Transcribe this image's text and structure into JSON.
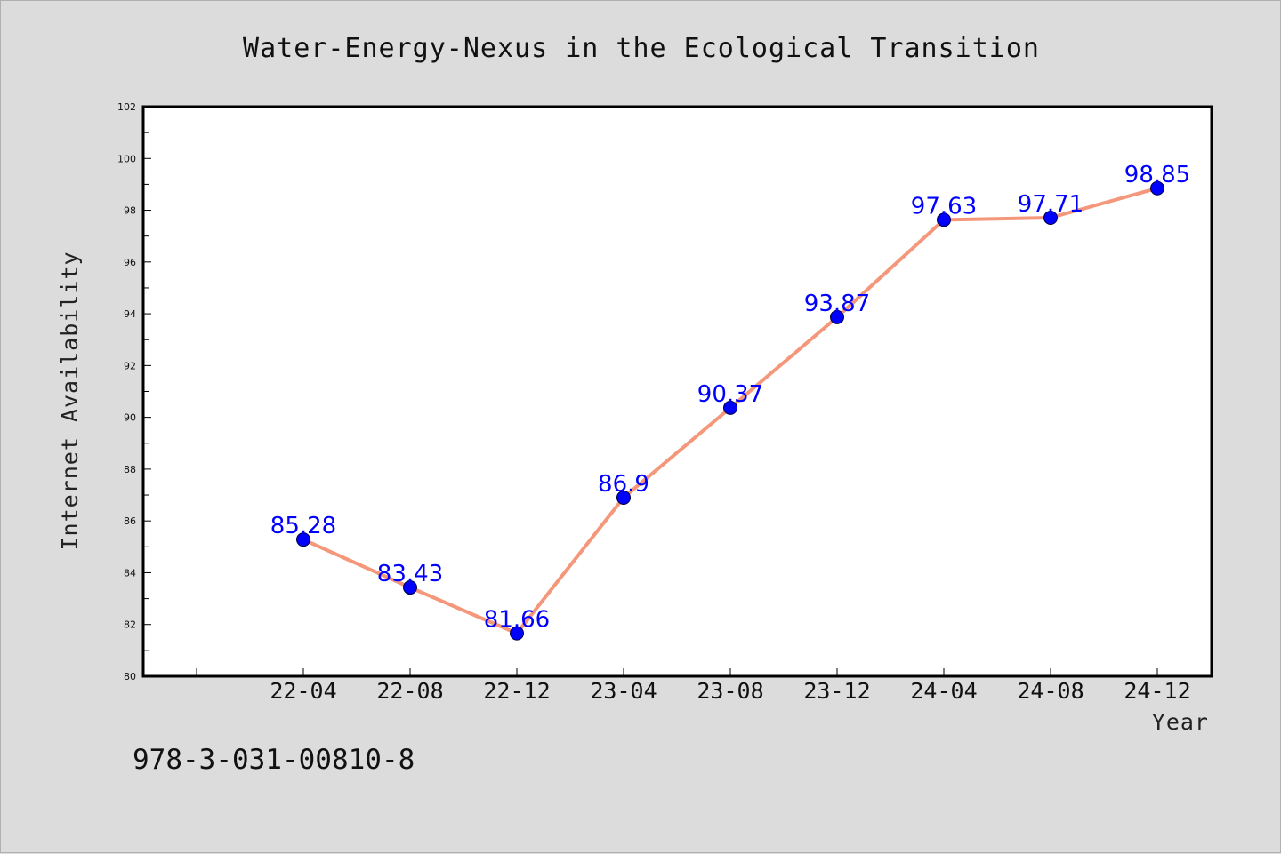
{
  "chart_data": {
    "type": "line",
    "title": "Water-Energy-Nexus in the Ecological Transition",
    "xlabel": "Year",
    "ylabel": "Internet Availability",
    "categories": [
      "22-04",
      "22-08",
      "22-12",
      "23-04",
      "23-08",
      "23-12",
      "24-04",
      "24-08",
      "24-12"
    ],
    "series": [
      {
        "values": [
          85.28,
          83.43,
          81.66,
          86.9,
          90.37,
          93.87,
          97.63,
          97.71,
          98.85
        ],
        "line_color": "#f4977a",
        "marker_color": "#0000ff"
      }
    ],
    "data_labels": [
      "85.28",
      "83.43",
      "81.66",
      "86.9",
      "90.37",
      "93.87",
      "97.63",
      "97.71",
      "98.85"
    ],
    "ylim": [
      80,
      102
    ],
    "yticks": [
      80,
      82,
      84,
      86,
      88,
      90,
      92,
      94,
      96,
      98,
      100,
      102
    ],
    "grid": false,
    "legend": "none"
  },
  "footer": {
    "isbn": "978-3-031-00810-8"
  },
  "colors": {
    "background": "#dcdcdc",
    "plot_background": "#ffffff",
    "line": "#f4977a",
    "marker": "#0000ff",
    "data_label": "#0000ff"
  }
}
